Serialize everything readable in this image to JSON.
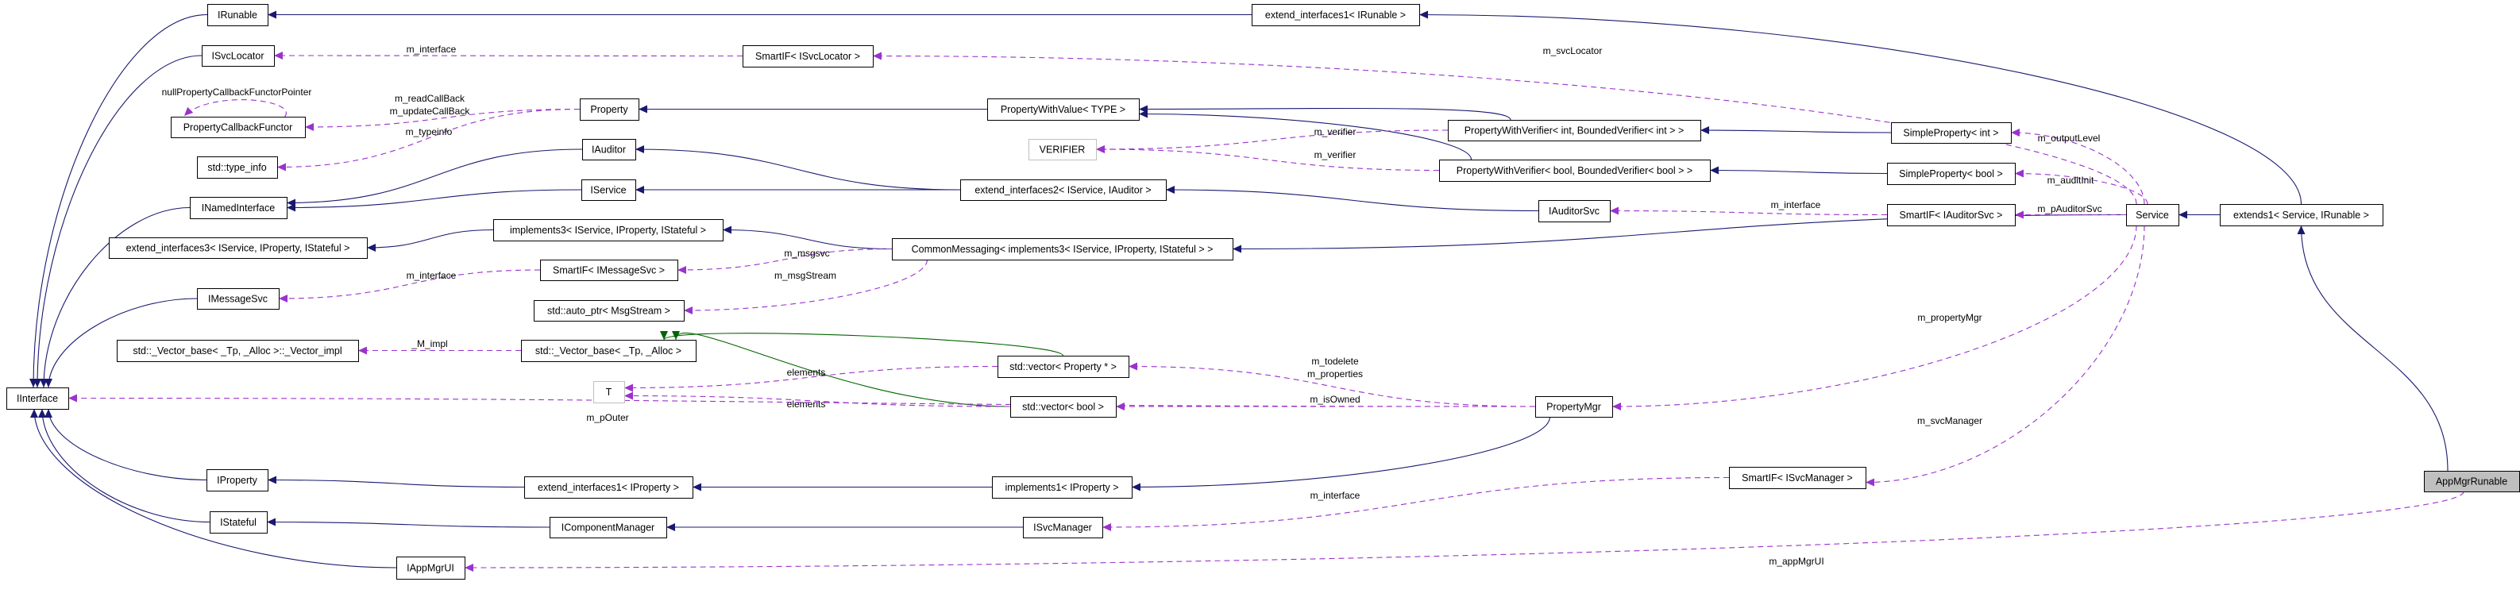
{
  "colors": {
    "inheritance": "#191970",
    "usage": "#9a32cd",
    "template": "#006400",
    "focus_fill": "#bfbfbf",
    "undocumented_border": "#bfbfbf"
  },
  "focus_node": "AppMgrRunable",
  "nodes": [
    {
      "id": "IRunable",
      "label": "IRunable"
    },
    {
      "id": "ISvcLocator",
      "label": "ISvcLocator"
    },
    {
      "id": "PCF",
      "label": "PropertyCallbackFunctor"
    },
    {
      "id": "typeinfo",
      "label": "std::type_info"
    },
    {
      "id": "INamedInterface",
      "label": "INamedInterface"
    },
    {
      "id": "ext3",
      "label": "extend_interfaces3< IService, IProperty, IStateful >"
    },
    {
      "id": "IMessageSvc",
      "label": "IMessageSvc"
    },
    {
      "id": "vimpl",
      "label": "std::_Vector_base< _Tp, _Alloc >::_Vector_impl"
    },
    {
      "id": "IInterface",
      "label": "IInterface"
    },
    {
      "id": "IProperty",
      "label": "IProperty"
    },
    {
      "id": "IStateful",
      "label": "IStateful"
    },
    {
      "id": "IAppMgrUI",
      "label": "IAppMgrUI"
    },
    {
      "id": "Property",
      "label": "Property"
    },
    {
      "id": "IAuditor",
      "label": "IAuditor"
    },
    {
      "id": "IService",
      "label": "IService"
    },
    {
      "id": "impl3",
      "label": "implements3< IService, IProperty, IStateful >"
    },
    {
      "id": "SmartMsg",
      "label": "SmartIF< IMessageSvc >"
    },
    {
      "id": "autoptr",
      "label": "std::auto_ptr< MsgStream >"
    },
    {
      "id": "vbase",
      "label": "std::_Vector_base< _Tp, _Alloc >"
    },
    {
      "id": "T",
      "label": "T",
      "undocumented": true
    },
    {
      "id": "ext1prop",
      "label": "extend_interfaces1< IProperty >"
    },
    {
      "id": "ICM",
      "label": "IComponentManager"
    },
    {
      "id": "SmartLoc",
      "label": "SmartIF< ISvcLocator >"
    },
    {
      "id": "PWV",
      "label": "PropertyWithValue< TYPE >"
    },
    {
      "id": "VERIFIER",
      "label": "VERIFIER",
      "undocumented": true
    },
    {
      "id": "ext2",
      "label": "extend_interfaces2< IService, IAuditor >"
    },
    {
      "id": "CM",
      "label": "CommonMessaging< implements3< IService, IProperty, IStateful > >"
    },
    {
      "id": "vecP",
      "label": "std::vector< Property * >"
    },
    {
      "id": "vecB",
      "label": "std::vector< bool >"
    },
    {
      "id": "impl1",
      "label": "implements1< IProperty >"
    },
    {
      "id": "ISvcManager",
      "label": "ISvcManager"
    },
    {
      "id": "ext1run",
      "label": "extend_interfaces1< IRunable >"
    },
    {
      "id": "PWVi",
      "label": "PropertyWithVerifier< int, BoundedVerifier< int > >"
    },
    {
      "id": "PWVb",
      "label": "PropertyWithVerifier< bool, BoundedVerifier< bool > >"
    },
    {
      "id": "IAuditorSvc",
      "label": "IAuditorSvc"
    },
    {
      "id": "SPi",
      "label": "SimpleProperty< int >"
    },
    {
      "id": "SPb",
      "label": "SimpleProperty< bool >"
    },
    {
      "id": "SmartAud",
      "label": "SmartIF< IAuditorSvc >"
    },
    {
      "id": "PropertyMgr",
      "label": "PropertyMgr"
    },
    {
      "id": "SmartMgr",
      "label": "SmartIF< ISvcManager >"
    },
    {
      "id": "Service",
      "label": "Service"
    },
    {
      "id": "extends1",
      "label": "extends1< Service, IRunable >"
    },
    {
      "id": "AppMgrRunable",
      "label": "AppMgrRunable",
      "focus": true
    }
  ],
  "edges": [
    {
      "from": "IRunable",
      "to": "IInterface",
      "kind": "inheritance"
    },
    {
      "from": "ISvcLocator",
      "to": "IInterface",
      "kind": "inheritance"
    },
    {
      "from": "INamedInterface",
      "to": "IInterface",
      "kind": "inheritance"
    },
    {
      "from": "IMessageSvc",
      "to": "IInterface",
      "kind": "inheritance"
    },
    {
      "from": "IProperty",
      "to": "IInterface",
      "kind": "inheritance"
    },
    {
      "from": "IStateful",
      "to": "IInterface",
      "kind": "inheritance"
    },
    {
      "from": "IAppMgrUI",
      "to": "IInterface",
      "kind": "inheritance"
    },
    {
      "from": "IAuditor",
      "to": "INamedInterface",
      "kind": "inheritance"
    },
    {
      "from": "IService",
      "to": "INamedInterface",
      "kind": "inheritance"
    },
    {
      "from": "impl3",
      "to": "ext3",
      "kind": "inheritance"
    },
    {
      "from": "ext2",
      "to": "IAuditor",
      "kind": "inheritance"
    },
    {
      "from": "ext2",
      "to": "IService",
      "kind": "inheritance"
    },
    {
      "from": "PWV",
      "to": "Property",
      "kind": "inheritance"
    },
    {
      "from": "PWVi",
      "to": "PWV",
      "kind": "inheritance"
    },
    {
      "from": "PWVb",
      "to": "PWV",
      "kind": "inheritance"
    },
    {
      "from": "SPi",
      "to": "PWVi",
      "kind": "inheritance"
    },
    {
      "from": "SPb",
      "to": "PWVb",
      "kind": "inheritance"
    },
    {
      "from": "IAuditorSvc",
      "to": "ext2",
      "kind": "inheritance"
    },
    {
      "from": "SmartAud",
      "to": "IAuditorSvc",
      "kind": "usage",
      "labels": [
        "m_interface"
      ]
    },
    {
      "from": "Service",
      "to": "CM",
      "kind": "inheritance"
    },
    {
      "from": "CM",
      "to": "impl3",
      "kind": "inheritance"
    },
    {
      "from": "ext1prop",
      "to": "IProperty",
      "kind": "inheritance"
    },
    {
      "from": "impl1",
      "to": "ext1prop",
      "kind": "inheritance"
    },
    {
      "from": "PropertyMgr",
      "to": "impl1",
      "kind": "inheritance"
    },
    {
      "from": "ICM",
      "to": "IStateful",
      "kind": "inheritance"
    },
    {
      "from": "ISvcManager",
      "to": "ICM",
      "kind": "inheritance"
    },
    {
      "from": "ext1run",
      "to": "IRunable",
      "kind": "inheritance"
    },
    {
      "from": "extends1",
      "to": "Service",
      "kind": "inheritance"
    },
    {
      "from": "extends1",
      "to": "ext1run",
      "kind": "inheritance"
    },
    {
      "from": "AppMgrRunable",
      "to": "extends1",
      "kind": "inheritance"
    },
    {
      "from": "vecP",
      "to": "vbase",
      "kind": "template"
    },
    {
      "from": "vecB",
      "to": "vbase",
      "kind": "template"
    },
    {
      "from": "SmartLoc",
      "to": "ISvcLocator",
      "kind": "usage",
      "labels": [
        "m_interface"
      ]
    },
    {
      "from": "Service",
      "to": "SmartLoc",
      "kind": "usage",
      "labels": [
        "m_svcLocator"
      ]
    },
    {
      "from": "Property",
      "to": "PCF",
      "kind": "usage",
      "labels": [
        "m_readCallBack",
        "m_updateCallBack"
      ]
    },
    {
      "from": "Property",
      "to": "typeinfo",
      "kind": "usage",
      "labels": [
        "m_typeinfo"
      ]
    },
    {
      "from": "PCF",
      "to": "PCF",
      "kind": "usage",
      "labels": [
        "nullPropertyCallbackFunctorPointer"
      ]
    },
    {
      "from": "PWVi",
      "to": "VERIFIER",
      "kind": "usage",
      "labels": [
        "m_verifier"
      ]
    },
    {
      "from": "PWVb",
      "to": "VERIFIER",
      "kind": "usage",
      "labels": [
        "m_verifier"
      ]
    },
    {
      "from": "Service",
      "to": "SPi",
      "kind": "usage",
      "labels": [
        "m_outputLevel"
      ]
    },
    {
      "from": "Service",
      "to": "SPb",
      "kind": "usage",
      "labels": [
        "m_auditInit"
      ]
    },
    {
      "from": "Service",
      "to": "SmartAud",
      "kind": "usage",
      "labels": [
        "m_pAuditorSvc"
      ]
    },
    {
      "from": "SmartMsg",
      "to": "IMessageSvc",
      "kind": "usage",
      "labels": [
        "m_interface"
      ]
    },
    {
      "from": "CM",
      "to": "SmartMsg",
      "kind": "usage",
      "labels": [
        "m_msgsvc"
      ]
    },
    {
      "from": "CM",
      "to": "autoptr",
      "kind": "usage",
      "labels": [
        "m_msgStream"
      ]
    },
    {
      "from": "vbase",
      "to": "vimpl",
      "kind": "usage",
      "labels": [
        "_M_impl"
      ]
    },
    {
      "from": "vecP",
      "to": "T",
      "kind": "usage",
      "labels": [
        "elements"
      ]
    },
    {
      "from": "vecB",
      "to": "T",
      "kind": "usage",
      "labels": [
        "elements"
      ]
    },
    {
      "from": "PropertyMgr",
      "to": "vecP",
      "kind": "usage",
      "labels": [
        "m_todelete",
        "m_properties"
      ]
    },
    {
      "from": "PropertyMgr",
      "to": "vecB",
      "kind": "usage",
      "labels": [
        "m_isOwned"
      ]
    },
    {
      "from": "PropertyMgr",
      "to": "IInterface",
      "kind": "usage",
      "labels": [
        "m_pOuter"
      ]
    },
    {
      "from": "Service",
      "to": "PropertyMgr",
      "kind": "usage",
      "labels": [
        "m_propertyMgr"
      ]
    },
    {
      "from": "Service",
      "to": "SmartMgr",
      "kind": "usage",
      "labels": [
        "m_svcManager"
      ]
    },
    {
      "from": "SmartMgr",
      "to": "ISvcManager",
      "kind": "usage",
      "labels": [
        "m_interface"
      ]
    },
    {
      "from": "AppMgrRunable",
      "to": "IAppMgrUI",
      "kind": "usage",
      "labels": [
        "m_appMgrUI"
      ]
    }
  ]
}
